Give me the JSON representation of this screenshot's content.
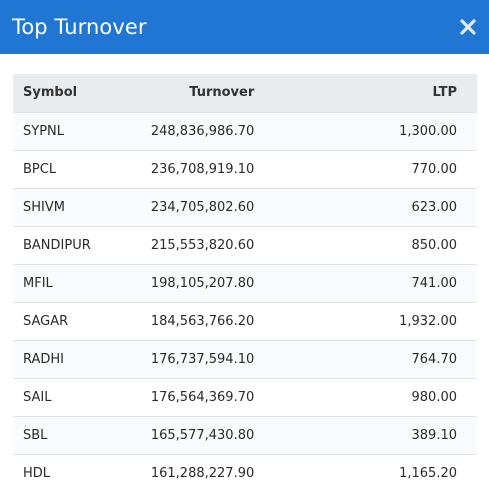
{
  "modal": {
    "title": "Top Turnover",
    "close_icon": "close-icon"
  },
  "table": {
    "headers": {
      "symbol": "Symbol",
      "turnover": "Turnover",
      "ltp": "LTP"
    },
    "rows": [
      {
        "symbol": "SYPNL",
        "turnover": "248,836,986.70",
        "ltp": "1,300.00"
      },
      {
        "symbol": "BPCL",
        "turnover": "236,708,919.10",
        "ltp": "770.00"
      },
      {
        "symbol": "SHIVM",
        "turnover": "234,705,802.60",
        "ltp": "623.00"
      },
      {
        "symbol": "BANDIPUR",
        "turnover": "215,553,820.60",
        "ltp": "850.00"
      },
      {
        "symbol": "MFIL",
        "turnover": "198,105,207.80",
        "ltp": "741.00"
      },
      {
        "symbol": "SAGAR",
        "turnover": "184,563,766.20",
        "ltp": "1,932.00"
      },
      {
        "symbol": "RADHI",
        "turnover": "176,737,594.10",
        "ltp": "764.70"
      },
      {
        "symbol": "SAIL",
        "turnover": "176,564,369.70",
        "ltp": "980.00"
      },
      {
        "symbol": "SBL",
        "turnover": "165,577,430.80",
        "ltp": "389.10"
      },
      {
        "symbol": "HDL",
        "turnover": "161,288,227.90",
        "ltp": "1,165.20"
      }
    ]
  },
  "colors": {
    "header_bg": "#2176d3",
    "table_header_bg": "#e9ecef"
  }
}
